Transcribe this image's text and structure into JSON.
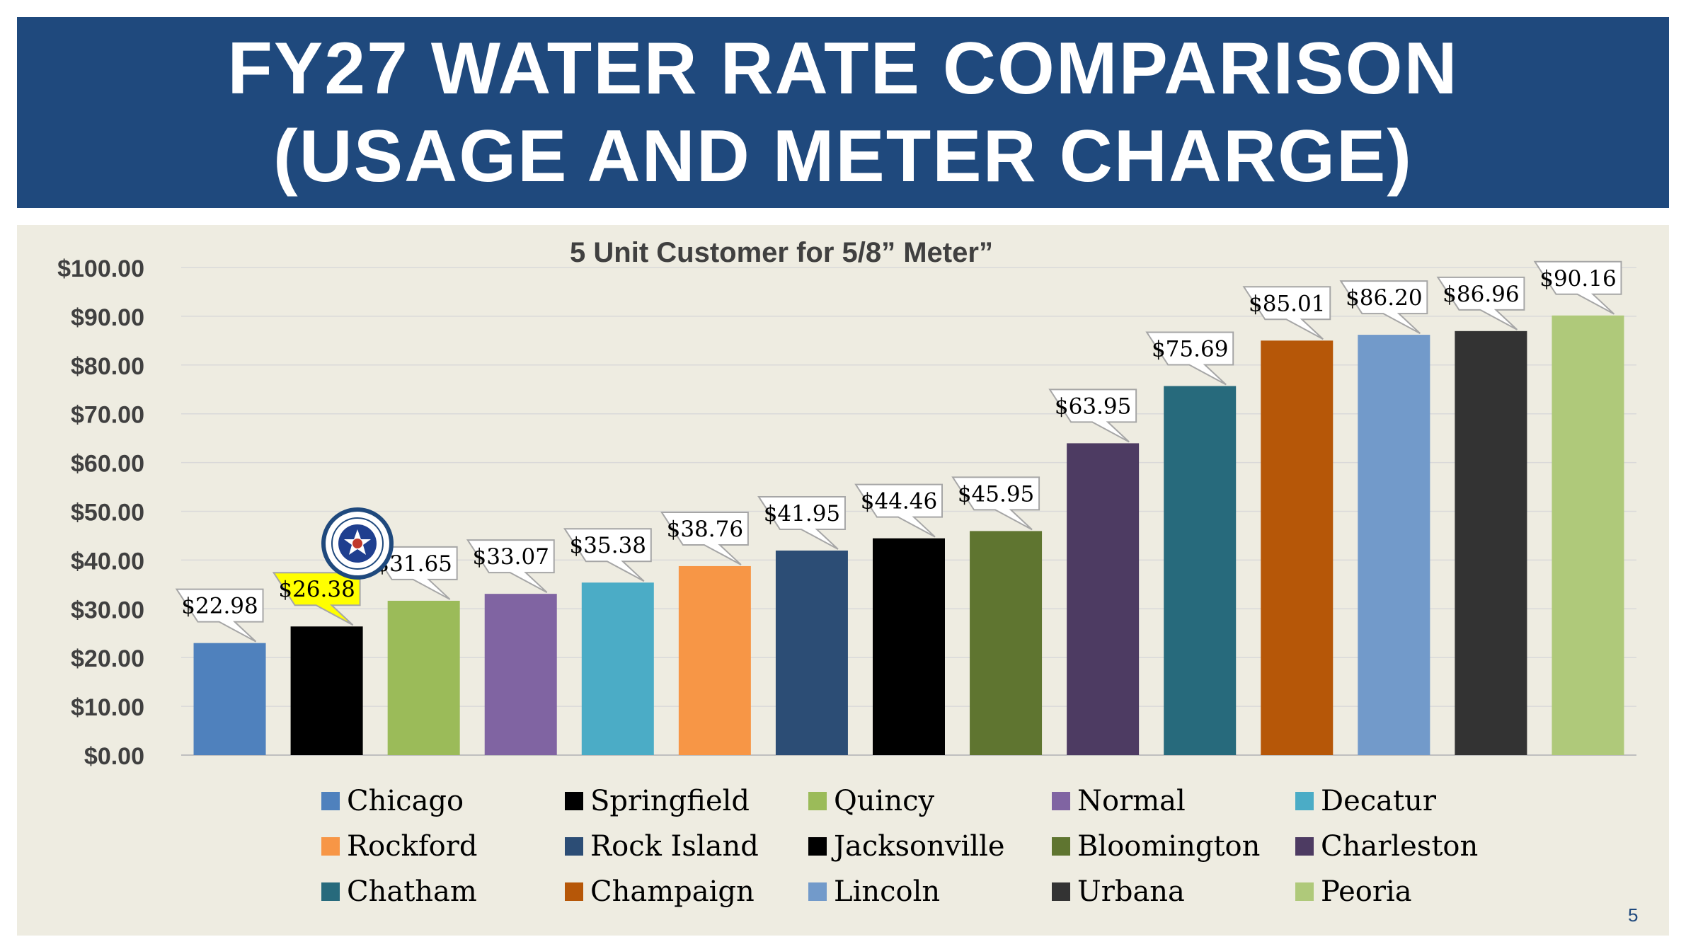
{
  "slide": {
    "title_line1": "FY27 WATER RATE COMPARISON",
    "title_line2": "(USAGE AND METER CHARGE)",
    "page_number": "5",
    "title_band_color": "#1f497d",
    "panel_color": "#eeece1"
  },
  "chart_data": {
    "type": "bar",
    "title": "5 Unit Customer for 5/8” Meter”",
    "xlabel": "",
    "ylabel": "",
    "ylim": [
      0,
      100
    ],
    "yticks": [
      0,
      10,
      20,
      30,
      40,
      50,
      60,
      70,
      80,
      90,
      100
    ],
    "ytick_labels": [
      "$0.00",
      "$10.00",
      "$20.00",
      "$30.00",
      "$40.00",
      "$50.00",
      "$60.00",
      "$70.00",
      "$80.00",
      "$90.00",
      "$100.00"
    ],
    "grid": true,
    "legend_position": "bottom",
    "categories": [
      "Chicago",
      "Springfield",
      "Quincy",
      "Normal",
      "Decatur",
      "Rockford",
      "Rock Island",
      "Jacksonville",
      "Bloomington",
      "Charleston",
      "Chatham",
      "Champaign",
      "Lincoln",
      "Urbana",
      "Peoria"
    ],
    "values": [
      22.98,
      26.38,
      31.65,
      33.07,
      35.38,
      38.76,
      41.95,
      44.46,
      45.95,
      63.95,
      75.69,
      85.01,
      86.2,
      86.96,
      90.16
    ],
    "data_labels": [
      "$22.98",
      "$26.38",
      "$31.65",
      "$33.07",
      "$35.38",
      "$38.76",
      "$41.95",
      "$44.46",
      "$45.95",
      "$63.95",
      "$75.69",
      "$85.01",
      "$86.20",
      "$86.96",
      "$90.16"
    ],
    "colors": [
      "#4f81bd",
      "#000000",
      "#9bbb59",
      "#8064a2",
      "#4bacc6",
      "#f79646",
      "#2c4d75",
      "#000000",
      "#5f7530",
      "#4d3b62",
      "#276a7c",
      "#b65708",
      "#729aca",
      "#333333",
      "#afc97a"
    ],
    "highlight_category": "Springfield",
    "highlight_label_color": "#ffff00",
    "label_fill": "#ffffff",
    "label_border": "#a6a6a6",
    "logo_lettering": "CITY WATER LIGHT AND POWER SPRINGFIELD IL"
  }
}
